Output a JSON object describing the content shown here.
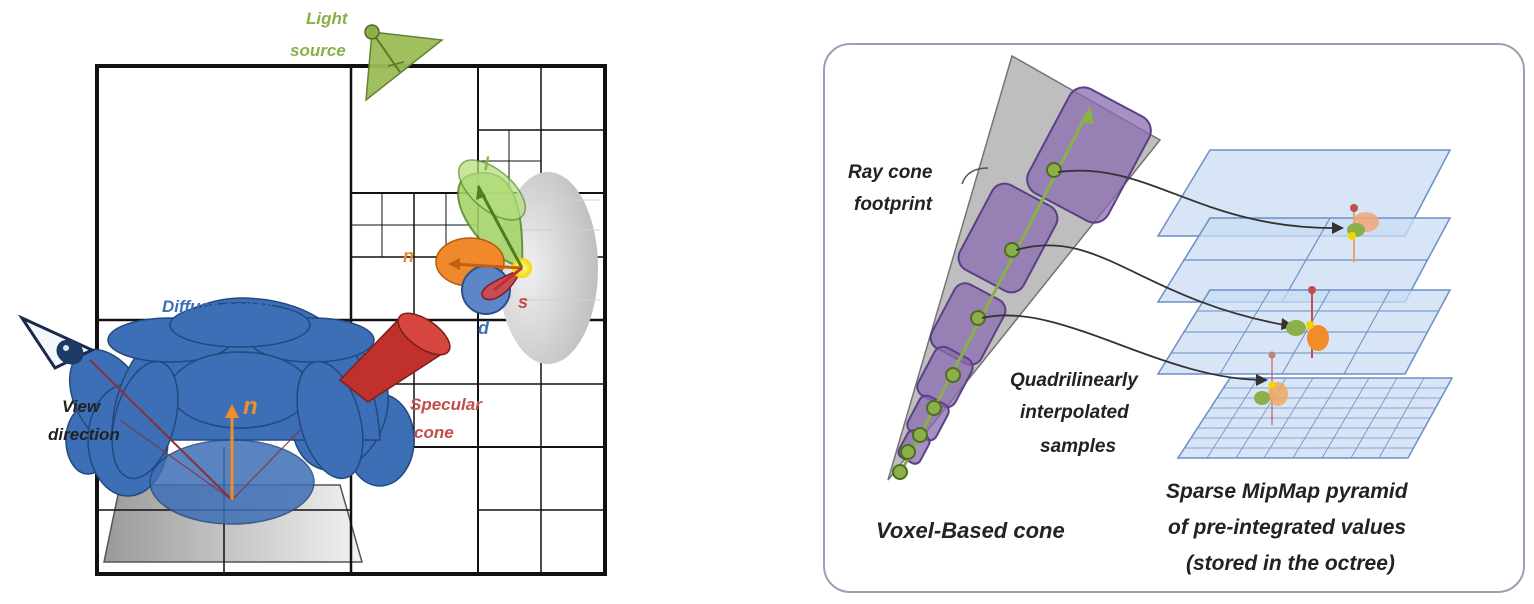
{
  "left_diagram": {
    "light_source": [
      "Light",
      "source"
    ],
    "diffuse_cones": "Diffuse cones",
    "view_direction": [
      "View",
      "direction"
    ],
    "specular_cone": [
      "Specular",
      "cone"
    ],
    "normal_main": "n",
    "normal_small": "n",
    "light_vec": "l",
    "specular_vec": "s",
    "diffuse_vec": "d"
  },
  "right_diagram": {
    "ray_cone_footprint": [
      "Ray cone",
      "footprint"
    ],
    "quadrilinear": [
      "Quadrilinearly",
      "interpolated",
      "samples"
    ],
    "voxel_cone": "Voxel-Based cone",
    "mipmap": [
      "Sparse MipMap pyramid",
      "of pre-integrated values",
      "(stored in the octree)"
    ]
  },
  "colors": {
    "diffuse_blue": "#3d6fb6",
    "specular_red": "#c0312c",
    "light_green": "#8bb04a",
    "normal_orange": "#f08c2a",
    "voxel_purple": "#8a6bb0",
    "plane_blue": "#c9dcf3"
  }
}
